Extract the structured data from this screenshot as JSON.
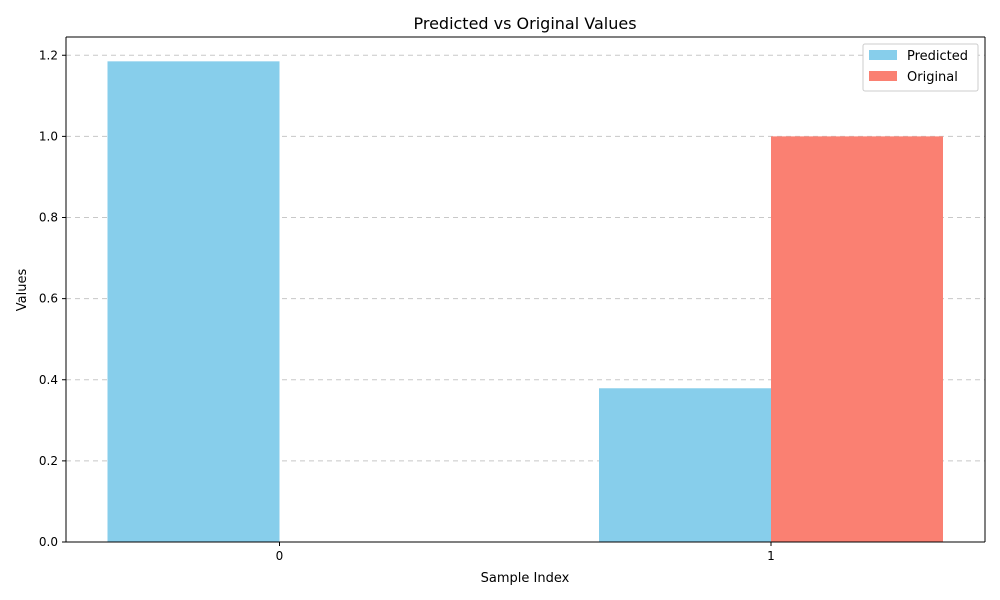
{
  "chart_data": {
    "type": "bar",
    "title": "Predicted vs Original Values",
    "xlabel": "Sample Index",
    "ylabel": "Values",
    "categories": [
      "0",
      "1"
    ],
    "series": [
      {
        "name": "Predicted",
        "values": [
          1.185,
          0.379
        ],
        "color": "#87CEEB"
      },
      {
        "name": "Original",
        "values": [
          0.0,
          1.0
        ],
        "color": "#FA8072"
      }
    ],
    "ylim": [
      0,
      1.245
    ],
    "yticks": [
      "0.0",
      "0.2",
      "0.4",
      "0.6",
      "0.8",
      "1.0",
      "1.2"
    ],
    "grid": "y-dashed",
    "legend_position": "top-right"
  }
}
